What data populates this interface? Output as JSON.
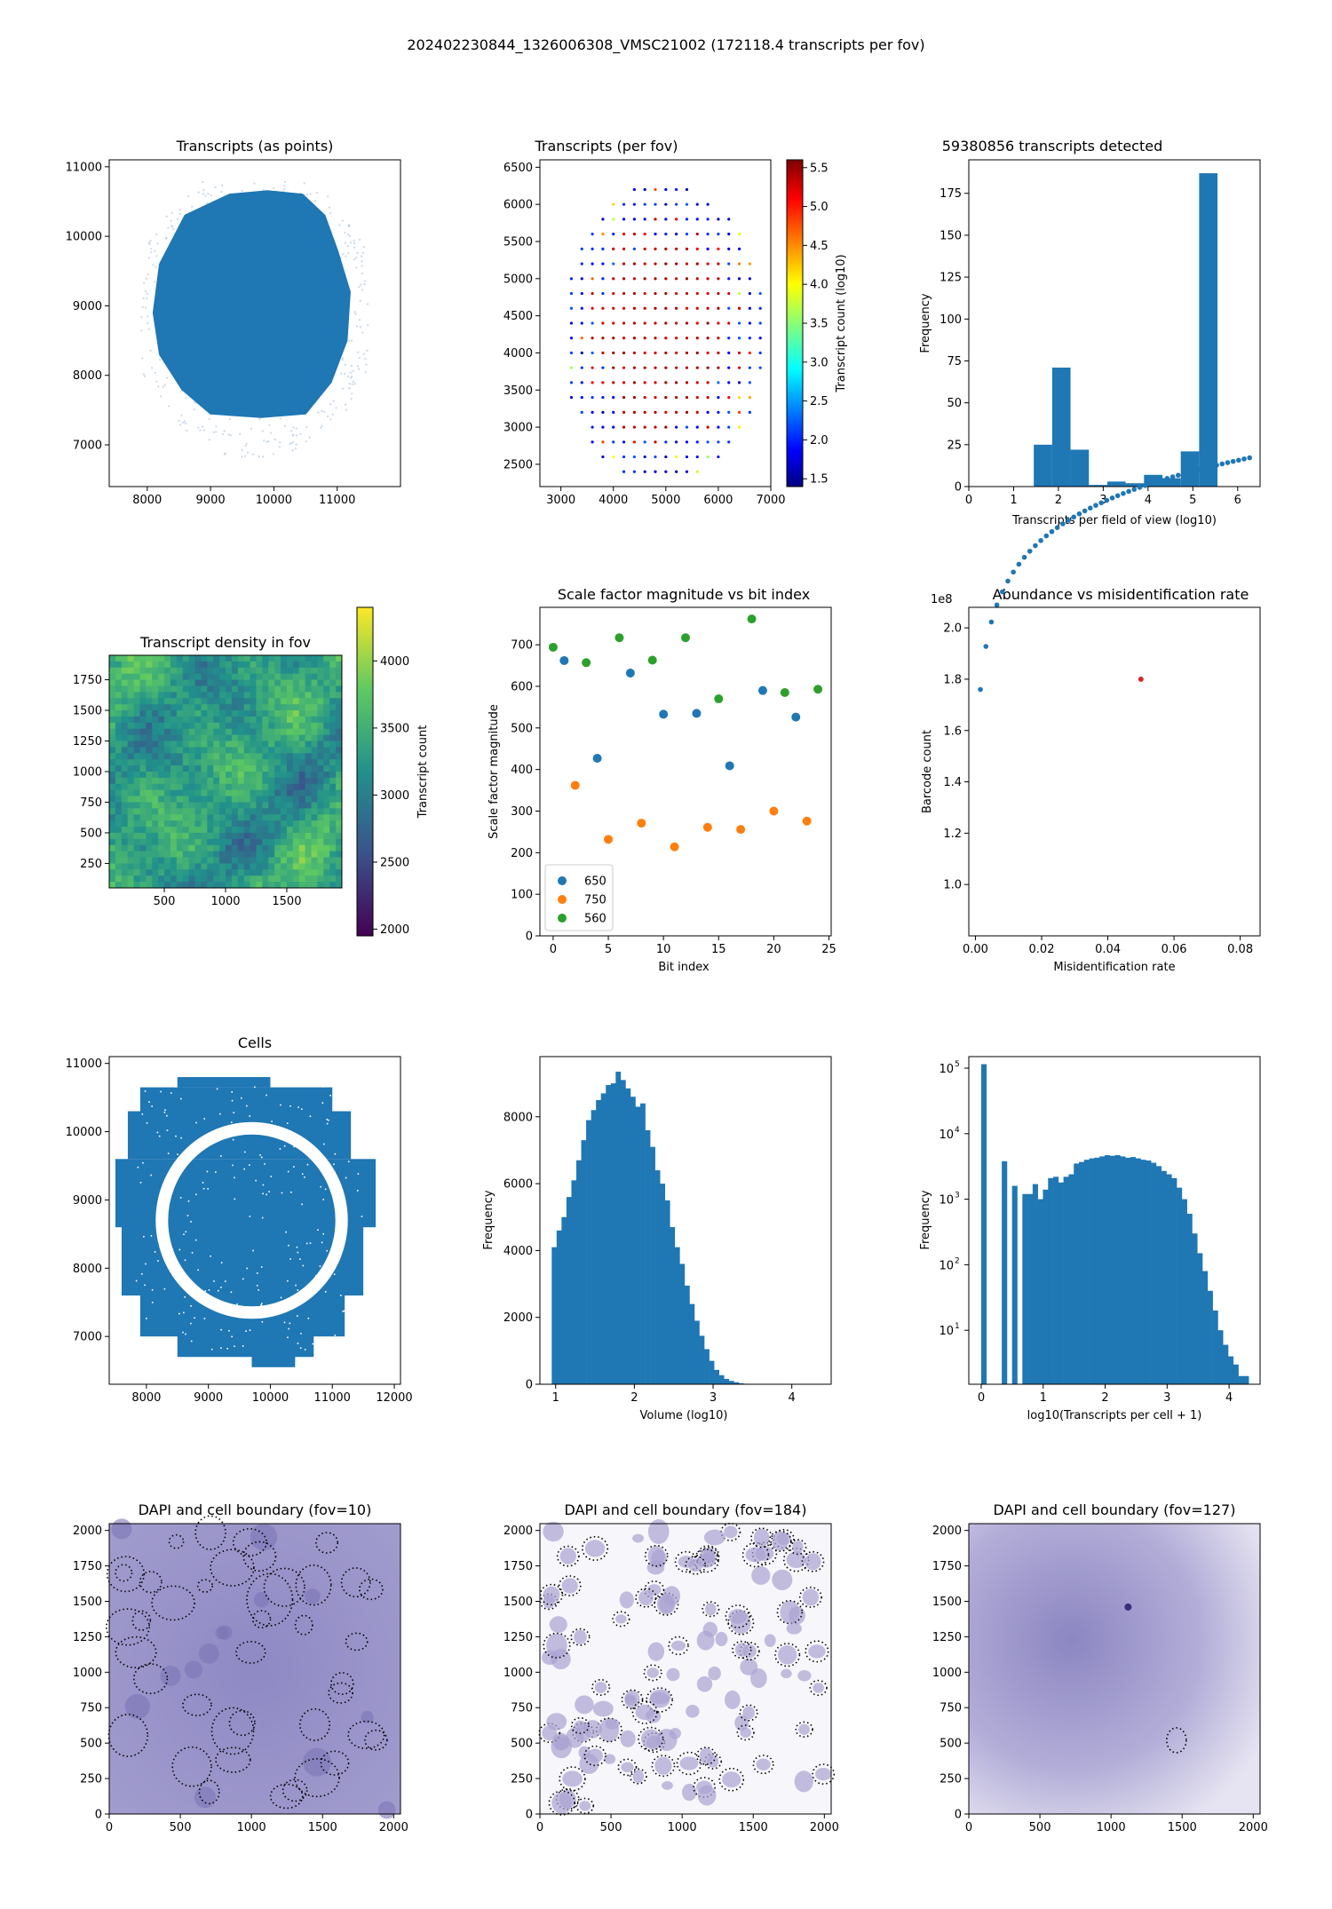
{
  "page": {
    "suptitle": "202402230844_1326006308_VMSC21002 (172118.4 transcripts per fov)"
  },
  "colors": {
    "blue": "#1f77b4",
    "orange": "#ff7f0e",
    "green": "#2ca02c",
    "dapi": "#6a5fa8"
  },
  "chart_data": [
    {
      "id": "transcripts_points",
      "type": "scatter",
      "title": "Transcripts (as points)",
      "xlabel": "",
      "ylabel": "",
      "xlim": [
        7400,
        12000
      ],
      "ylim": [
        6400,
        11100
      ],
      "xticks": [
        8000,
        9000,
        10000,
        11000
      ],
      "yticks": [
        7000,
        8000,
        9000,
        10000,
        11000
      ],
      "shape_outline": [
        [
          8600,
          10300
        ],
        [
          9300,
          10600
        ],
        [
          9900,
          10650
        ],
        [
          10450,
          10600
        ],
        [
          10800,
          10300
        ],
        [
          11000,
          9800
        ],
        [
          11200,
          9200
        ],
        [
          11150,
          8500
        ],
        [
          10900,
          7900
        ],
        [
          10500,
          7450
        ],
        [
          9800,
          7400
        ],
        [
          9000,
          7450
        ],
        [
          8550,
          7800
        ],
        [
          8200,
          8300
        ],
        [
          8100,
          8900
        ],
        [
          8200,
          9600
        ]
      ],
      "grid": false
    },
    {
      "id": "transcripts_per_fov",
      "type": "scatter",
      "title": "Transcripts (per fov)",
      "xlim": [
        2600,
        7000
      ],
      "ylim": [
        2200,
        6600
      ],
      "xticks": [
        3000,
        4000,
        5000,
        6000,
        7000
      ],
      "yticks": [
        2500,
        3000,
        3500,
        4000,
        4500,
        5000,
        5500,
        6000,
        6500
      ],
      "colorbar": {
        "label": "Transcript count (log10)",
        "range": [
          1.4,
          5.6
        ],
        "ticks": [
          1.5,
          2.0,
          2.5,
          3.0,
          3.5,
          4.0,
          4.5,
          5.0,
          5.5
        ]
      },
      "grid_spacing": 200,
      "center": [
        4950,
        4250
      ],
      "grid": false
    },
    {
      "id": "transcripts_hist",
      "type": "bar",
      "title": "59380856 transcripts detected",
      "xlabel": "Transcripts per field of view (log10)",
      "ylabel": "Frequency",
      "bin_edges": [
        1.45,
        1.86,
        2.27,
        2.68,
        3.09,
        3.5,
        3.91,
        4.32,
        4.73,
        5.14,
        5.55
      ],
      "values": [
        25,
        71,
        22,
        1,
        3,
        2,
        7,
        5,
        21,
        187
      ],
      "xlim": [
        0,
        6.5
      ],
      "ylim": [
        0,
        195
      ],
      "xticks": [
        0,
        1,
        2,
        3,
        4,
        5,
        6
      ],
      "yticks": [
        0,
        25,
        50,
        75,
        100,
        125,
        150,
        175
      ]
    },
    {
      "id": "density_fov",
      "type": "heatmap",
      "title": "Transcript density in fov",
      "xlim": [
        50,
        1950
      ],
      "ylim": [
        50,
        1950
      ],
      "xticks": [
        500,
        1000,
        1500
      ],
      "yticks": [
        250,
        500,
        750,
        1000,
        1250,
        1500,
        1750
      ],
      "colorbar": {
        "label": "Transcript count",
        "range": [
          1950,
          4400
        ],
        "ticks": [
          2000,
          2500,
          3000,
          3500,
          4000
        ]
      }
    },
    {
      "id": "scale_factor",
      "type": "scatter",
      "title": "Scale factor magnitude vs bit index",
      "xlabel": "Bit index",
      "ylabel": "Scale factor magnitude",
      "xlim": [
        -1.2,
        25.2
      ],
      "ylim": [
        0,
        790
      ],
      "xticks": [
        0,
        5,
        10,
        15,
        20,
        25
      ],
      "yticks": [
        0,
        100,
        200,
        300,
        400,
        500,
        600,
        700
      ],
      "legend_position": "lower-left",
      "series": [
        {
          "name": "650",
          "x": [
            1,
            4,
            7,
            10,
            13,
            16,
            19,
            22
          ],
          "y": [
            662,
            427,
            632,
            533,
            535,
            409,
            590,
            526
          ]
        },
        {
          "name": "750",
          "x": [
            2,
            5,
            8,
            11,
            14,
            17,
            20,
            23
          ],
          "y": [
            362,
            232,
            271,
            214,
            261,
            256,
            300,
            276
          ]
        },
        {
          "name": "560",
          "x": [
            0,
            3,
            6,
            9,
            12,
            15,
            18,
            21,
            24
          ],
          "y": [
            694,
            657,
            717,
            663,
            717,
            570,
            762,
            585,
            593
          ]
        }
      ]
    },
    {
      "id": "abundance",
      "type": "scatter",
      "title": "Abundance vs misidentification rate",
      "xlabel": "Misidentification rate",
      "ylabel": "Barcode count",
      "offset_label": "1e8",
      "xlim": [
        -0.002,
        0.086
      ],
      "ylim": [
        0.8,
        2.08
      ],
      "xticks": [
        0.0,
        0.02,
        0.04,
        0.06,
        0.08
      ],
      "yticks": [
        1.0,
        1.2,
        1.4,
        1.6,
        1.8,
        2.0
      ],
      "highlight": {
        "x": 0.05,
        "y": 1.8
      },
      "grid": false
    },
    {
      "id": "cells",
      "type": "scatter",
      "title": "Cells",
      "xlim": [
        7400,
        12100
      ],
      "ylim": [
        6300,
        11100
      ],
      "xticks": [
        8000,
        9000,
        10000,
        11000,
        12000
      ],
      "yticks": [
        7000,
        8000,
        9000,
        10000,
        11000
      ]
    },
    {
      "id": "volume_hist",
      "type": "bar",
      "title": "",
      "xlabel": "Volume (log10)",
      "ylabel": "Frequency",
      "x_start": 0.95,
      "bin_width": 0.0625,
      "values": [
        4100,
        4600,
        5000,
        5600,
        6100,
        6700,
        7300,
        7900,
        8200,
        8500,
        8700,
        8950,
        9000,
        9350,
        9100,
        8850,
        8600,
        8300,
        8400,
        7600,
        7100,
        6400,
        6000,
        5500,
        4700,
        4100,
        3600,
        2950,
        2400,
        1900,
        1450,
        1050,
        700,
        430,
        270,
        160,
        100,
        60,
        30,
        15,
        8,
        4
      ],
      "xlim": [
        0.8,
        4.5
      ],
      "ylim": [
        0,
        9800
      ],
      "xticks": [
        1,
        2,
        3,
        4
      ],
      "yticks": [
        0,
        2000,
        4000,
        6000,
        8000
      ]
    },
    {
      "id": "transcripts_per_cell_hist",
      "type": "bar",
      "title": "",
      "xlabel": "log10(Transcripts per cell + 1)",
      "ylabel": "Frequency",
      "log_y": true,
      "bin_edges": [
        0,
        0.083,
        0.166,
        0.249,
        0.332,
        0.415,
        0.498,
        0.581,
        0.664,
        0.747,
        0.83,
        0.913,
        0.996,
        1.079,
        1.162,
        1.245,
        1.328,
        1.411,
        1.494,
        1.577,
        1.66,
        1.743,
        1.826,
        1.909,
        1.992,
        2.075,
        2.158,
        2.241,
        2.324,
        2.407,
        2.49,
        2.573,
        2.656,
        2.739,
        2.822,
        2.905,
        2.988,
        3.071,
        3.154,
        3.237,
        3.32,
        3.403,
        3.486,
        3.569,
        3.652,
        3.735,
        3.818,
        3.901,
        3.984,
        4.067,
        4.15,
        4.233,
        4.316
      ],
      "values": [
        115000,
        0,
        0,
        0,
        3800,
        0,
        1600,
        0,
        1200,
        1200,
        1700,
        1000,
        1400,
        2100,
        2200,
        1800,
        2200,
        2400,
        3500,
        3700,
        4000,
        4200,
        4300,
        4500,
        4700,
        4600,
        4700,
        4500,
        4300,
        4400,
        4200,
        4000,
        3900,
        3600,
        3200,
        2700,
        2400,
        2100,
        1500,
        1000,
        600,
        300,
        150,
        80,
        40,
        20,
        10,
        6,
        4,
        3,
        2,
        2
      ],
      "xlim": [
        -0.2,
        4.5
      ],
      "ylim": [
        1.5,
        150000
      ],
      "xticks": [
        0,
        1,
        2,
        3,
        4
      ],
      "ytick_labels": [
        "10",
        "10",
        "10",
        "10",
        "10"
      ],
      "ytick_exponents": [
        "1",
        "2",
        "3",
        "4",
        "5"
      ]
    },
    {
      "id": "dapi_10",
      "type": "heatmap",
      "title": "DAPI and cell boundary (fov=10)",
      "xlim": [
        0,
        2048
      ],
      "ylim": [
        0,
        2048
      ],
      "xticks": [
        0,
        500,
        1000,
        1500,
        2000
      ],
      "yticks": [
        0,
        250,
        500,
        750,
        1000,
        1250,
        1500,
        1750,
        2000
      ]
    },
    {
      "id": "dapi_184",
      "type": "heatmap",
      "title": "DAPI and cell boundary (fov=184)",
      "xlim": [
        0,
        2048
      ],
      "ylim": [
        0,
        2048
      ],
      "xticks": [
        0,
        500,
        1000,
        1500,
        2000
      ],
      "yticks": [
        0,
        250,
        500,
        750,
        1000,
        1250,
        1500,
        1750,
        2000
      ]
    },
    {
      "id": "dapi_127",
      "type": "heatmap",
      "title": "DAPI and cell boundary (fov=127)",
      "xlim": [
        0,
        2048
      ],
      "ylim": [
        0,
        2048
      ],
      "xticks": [
        0,
        500,
        1000,
        1500,
        2000
      ],
      "yticks": [
        0,
        250,
        500,
        750,
        1000,
        1250,
        1500,
        1750,
        2000
      ]
    }
  ]
}
